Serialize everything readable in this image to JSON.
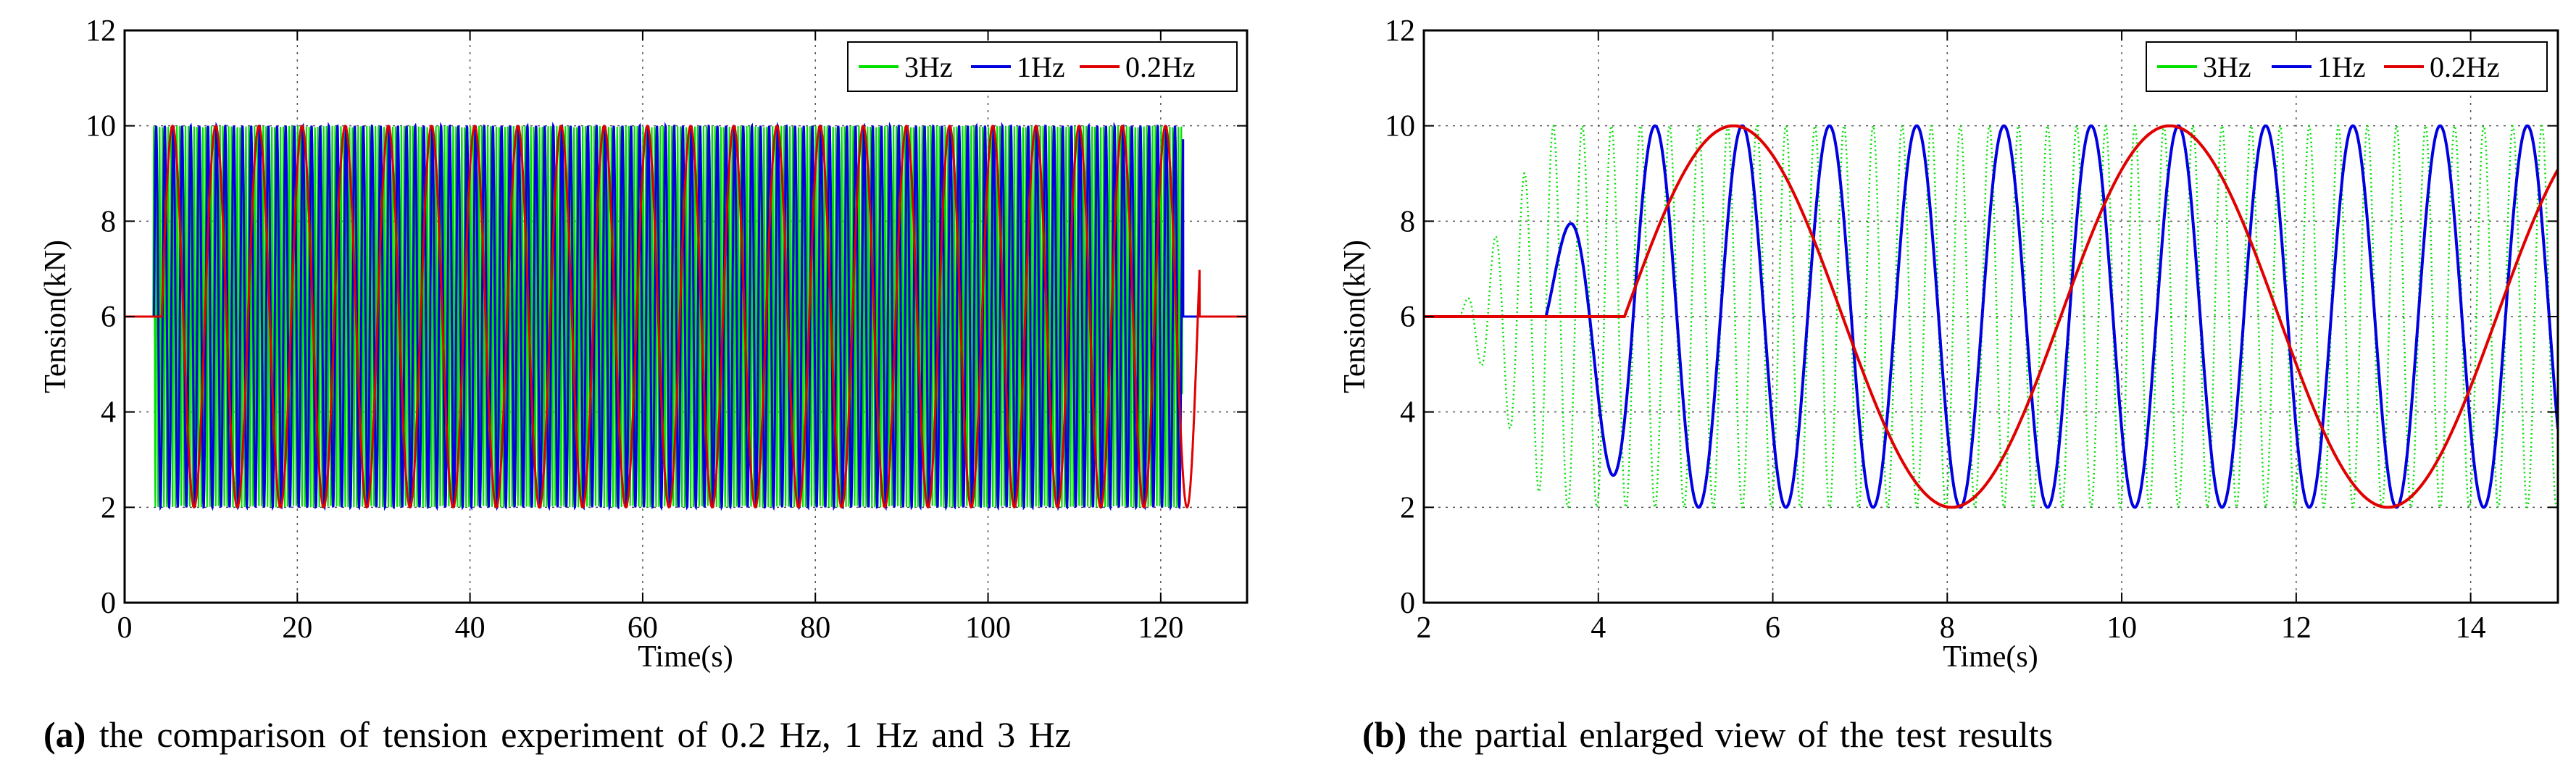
{
  "chart_data": [
    {
      "id": "a",
      "type": "line",
      "xlabel": "Time(s)",
      "ylabel": "Tension(kN)",
      "xlim": [
        0,
        130
      ],
      "ylim": [
        0,
        12
      ],
      "xticks": [
        "0",
        "20",
        "40",
        "60",
        "80",
        "100",
        "120"
      ],
      "yticks": [
        "0",
        "2",
        "4",
        "6",
        "8",
        "10",
        "12"
      ],
      "grid": true,
      "legend_position": "top-right",
      "series": [
        {
          "name": "3Hz",
          "color": "#00e000",
          "freq": 3,
          "baseline": 6,
          "amplitude": 4,
          "min": 2,
          "max": 10,
          "start": 3.3,
          "end": 122.5
        },
        {
          "name": "1Hz",
          "color": "#0000e0",
          "freq": 1,
          "baseline": 6,
          "amplitude": 4,
          "min": 2,
          "max": 10,
          "start": 3.4,
          "end": 122.6
        },
        {
          "name": "0.2Hz",
          "color": "#e00000",
          "freq": 0.2,
          "baseline": 6,
          "amplitude": 4,
          "min": 2,
          "max": 10,
          "start": 4.3,
          "end": 124.5
        }
      ],
      "caption_label": "(a)",
      "caption_text": "the comparison of tension experiment of 0.2 Hz, 1 Hz and 3 Hz"
    },
    {
      "id": "b",
      "type": "line",
      "xlabel": "Time(s)",
      "ylabel": "Tension(kN)",
      "xlim": [
        2,
        15
      ],
      "ylim": [
        0,
        12
      ],
      "xticks": [
        "2",
        "4",
        "6",
        "8",
        "10",
        "12",
        "14"
      ],
      "yticks": [
        "0",
        "2",
        "4",
        "6",
        "8",
        "10",
        "12"
      ],
      "grid": true,
      "legend_position": "top-right",
      "series": [
        {
          "name": "3Hz",
          "color": "#00e000",
          "freq": 3,
          "baseline": 6,
          "amplitude": 4,
          "min": 2,
          "max": 10,
          "start": 2.4
        },
        {
          "name": "1Hz",
          "color": "#0000e0",
          "freq": 1,
          "baseline": 6,
          "amplitude": 4,
          "min": 2,
          "max": 10,
          "start": 3.4
        },
        {
          "name": "0.2Hz",
          "color": "#e00000",
          "freq": 0.2,
          "baseline": 6,
          "amplitude": 4,
          "min": 2,
          "max": 10,
          "start": 4.3
        }
      ],
      "caption_label": "(b)",
      "caption_text": "the partial enlarged view of the test results"
    }
  ]
}
